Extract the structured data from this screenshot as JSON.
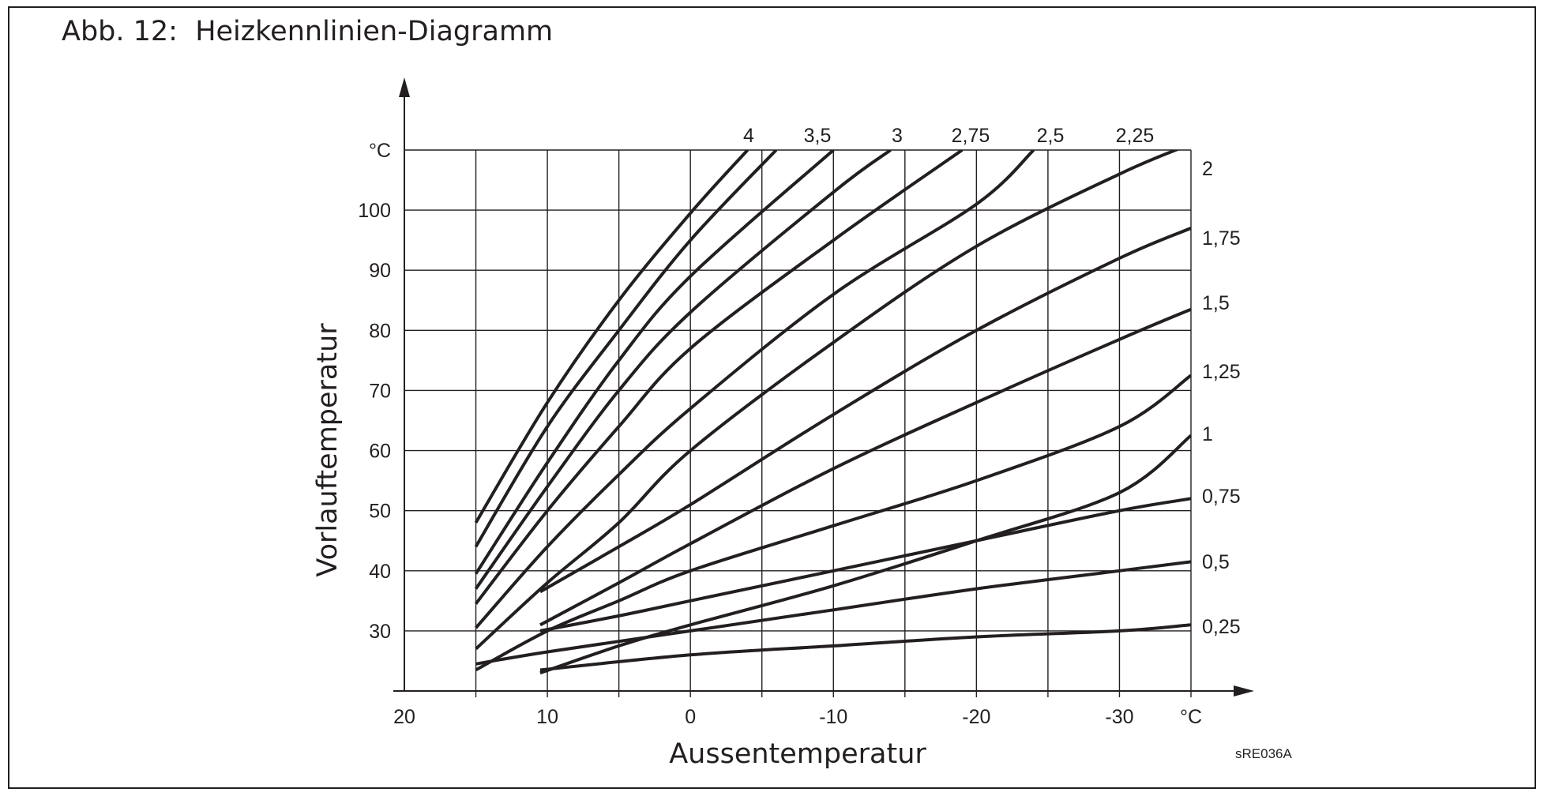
{
  "figure": {
    "title": "Abb. 12:  Heizkennlinien-Diagramm",
    "code": "sRE036A"
  },
  "chart_data": {
    "type": "line",
    "title": "Abb. 12:  Heizkennlinien-Diagramm",
    "xlabel": "Aussentemperatur",
    "ylabel": "Vorlauftemperatur",
    "x_unit": "°C",
    "y_unit": "°C",
    "xlim": [
      20,
      -35
    ],
    "ylim": [
      20,
      110
    ],
    "x_ticks": [
      "20",
      "10",
      "0",
      "-10",
      "-20",
      "-30"
    ],
    "y_ticks": [
      "30",
      "40",
      "50",
      "60",
      "70",
      "80",
      "90",
      "100"
    ],
    "grid": true,
    "series": [
      {
        "name": "4",
        "points": [
          [
            15,
            48
          ],
          [
            10,
            68
          ],
          [
            5,
            85
          ],
          [
            0,
            99.5
          ],
          [
            -4,
            110
          ]
        ]
      },
      {
        "name": "3,5",
        "points": [
          [
            15,
            44
          ],
          [
            10,
            64
          ],
          [
            5,
            80
          ],
          [
            0,
            95
          ],
          [
            -6,
            110
          ]
        ]
      },
      {
        "name": "3",
        "points": [
          [
            15,
            39.5
          ],
          [
            10,
            58
          ],
          [
            5,
            75
          ],
          [
            0,
            89
          ],
          [
            -10,
            110
          ]
        ]
      },
      {
        "name": "2,75",
        "points": [
          [
            15,
            37
          ],
          [
            10,
            54
          ],
          [
            5,
            70
          ],
          [
            0,
            83
          ],
          [
            -10,
            103
          ],
          [
            -14,
            110
          ]
        ]
      },
      {
        "name": "2,5",
        "points": [
          [
            15,
            34.5
          ],
          [
            10,
            50
          ],
          [
            5,
            64
          ],
          [
            0,
            77
          ],
          [
            -10,
            95
          ],
          [
            -19,
            110
          ]
        ]
      },
      {
        "name": "2,25",
        "points": [
          [
            15,
            30.5
          ],
          [
            10,
            44
          ],
          [
            5,
            56
          ],
          [
            0,
            67
          ],
          [
            -10,
            86
          ],
          [
            -20,
            101
          ],
          [
            -24,
            110
          ]
        ]
      },
      {
        "name": "2",
        "points": [
          [
            15,
            27
          ],
          [
            10,
            38
          ],
          [
            5,
            48
          ],
          [
            0,
            60
          ],
          [
            -10,
            78
          ],
          [
            -20,
            94
          ],
          [
            -30,
            106
          ],
          [
            -35,
            111
          ]
        ]
      },
      {
        "name": "1,75",
        "points": [
          [
            10.5,
            36.5
          ],
          [
            5,
            44
          ],
          [
            0,
            51
          ],
          [
            -10,
            66
          ],
          [
            -20,
            80
          ],
          [
            -30,
            92
          ],
          [
            -35,
            97
          ]
        ]
      },
      {
        "name": "1,5",
        "points": [
          [
            10.5,
            31
          ],
          [
            5,
            38
          ],
          [
            0,
            44.5
          ],
          [
            -10,
            57
          ],
          [
            -20,
            68
          ],
          [
            -30,
            78.5
          ],
          [
            -35,
            83.5
          ]
        ]
      },
      {
        "name": "1,25",
        "points": [
          [
            15,
            23.5
          ],
          [
            10,
            30
          ],
          [
            5,
            35
          ],
          [
            0,
            40
          ],
          [
            -10,
            47.5
          ],
          [
            -20,
            55
          ],
          [
            -30,
            64
          ],
          [
            -35,
            72.5
          ]
        ]
      },
      {
        "name": "1",
        "points": [
          [
            10.5,
            23
          ],
          [
            5,
            27.5
          ],
          [
            0,
            31
          ],
          [
            -10,
            37.5
          ],
          [
            -20,
            45
          ],
          [
            -30,
            53
          ],
          [
            -35,
            62.5
          ]
        ]
      },
      {
        "name": "0,75",
        "points": [
          [
            10.5,
            30
          ],
          [
            5,
            32.5
          ],
          [
            0,
            35
          ],
          [
            -10,
            40
          ],
          [
            -20,
            45
          ],
          [
            -30,
            50
          ],
          [
            -35,
            52
          ]
        ]
      },
      {
        "name": "0,5",
        "points": [
          [
            15,
            24.5
          ],
          [
            10,
            26.5
          ],
          [
            0,
            30
          ],
          [
            -10,
            33.5
          ],
          [
            -20,
            37
          ],
          [
            -30,
            40
          ],
          [
            -35,
            41.5
          ]
        ]
      },
      {
        "name": "0,25",
        "points": [
          [
            10.5,
            23.5
          ],
          [
            0,
            26
          ],
          [
            -10,
            27.5
          ],
          [
            -20,
            29
          ],
          [
            -30,
            30
          ],
          [
            -35,
            31
          ]
        ]
      }
    ],
    "label_placement": {
      "top": [
        "4",
        "3,5",
        "3",
        "2,75",
        "2,5",
        "2,25"
      ],
      "right": [
        "2",
        "1,75",
        "1,5",
        "1,25",
        "1",
        "0,75",
        "0,5",
        "0,25"
      ]
    }
  }
}
